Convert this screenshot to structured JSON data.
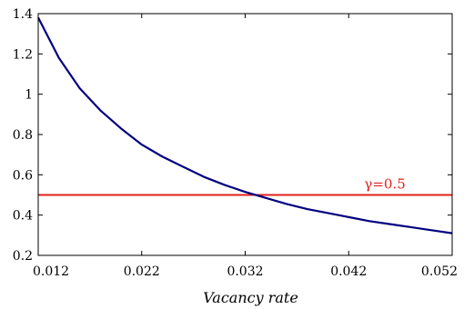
{
  "chart_data": {
    "type": "line",
    "title": "",
    "xlabel": "Vacancy rate",
    "ylabel": "",
    "xlim": [
      0.012,
      0.052
    ],
    "ylim": [
      0.2,
      1.4
    ],
    "x_ticks": [
      "0.012",
      "0.022",
      "0.032",
      "0.042",
      "0.052"
    ],
    "y_ticks": [
      "0.2",
      "0.4",
      "0.6",
      "0.8",
      "1",
      "1.2",
      "1.4"
    ],
    "grid": false,
    "series": [
      {
        "name": "",
        "color": "#000080",
        "x": [
          0.012,
          0.014,
          0.016,
          0.018,
          0.02,
          0.022,
          0.024,
          0.026,
          0.028,
          0.03,
          0.032,
          0.034,
          0.036,
          0.038,
          0.04,
          0.042,
          0.044,
          0.046,
          0.048,
          0.05,
          0.052
        ],
        "y": [
          1.38,
          1.18,
          1.03,
          0.92,
          0.83,
          0.75,
          0.69,
          0.64,
          0.59,
          0.55,
          0.515,
          0.485,
          0.455,
          0.43,
          0.41,
          0.39,
          0.37,
          0.355,
          0.34,
          0.325,
          0.31
        ]
      }
    ],
    "reference_line": {
      "y": 0.5,
      "color": "#e0201b"
    },
    "annotations": [
      {
        "text": "γ=0.5",
        "x": 0.0455,
        "y": 0.5
      }
    ]
  }
}
